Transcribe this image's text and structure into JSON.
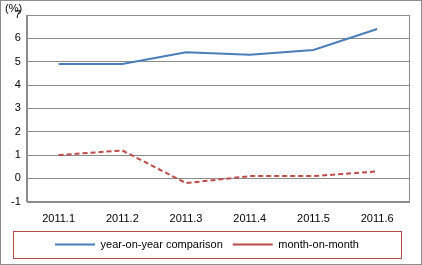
{
  "chart_data": {
    "type": "line",
    "ylabel": "(%)",
    "categories": [
      "2011.1",
      "2011.2",
      "2011.3",
      "2011.4",
      "2011.5",
      "2011.6"
    ],
    "series": [
      {
        "name": "year-on-year comparison",
        "color": "#4a7ebb",
        "line_style": "solid",
        "values": [
          4.9,
          4.9,
          5.4,
          5.3,
          5.5,
          6.4
        ]
      },
      {
        "name": "month-on-month",
        "color": "#be4b48",
        "line_style": "dashed",
        "values": [
          1.0,
          1.2,
          -0.2,
          0.1,
          0.1,
          0.3
        ]
      }
    ],
    "ylim": [
      -1,
      7
    ],
    "yticks": [
      -1,
      0,
      1,
      2,
      3,
      4,
      5,
      6,
      7
    ],
    "grid": true,
    "legend": "bottom"
  }
}
